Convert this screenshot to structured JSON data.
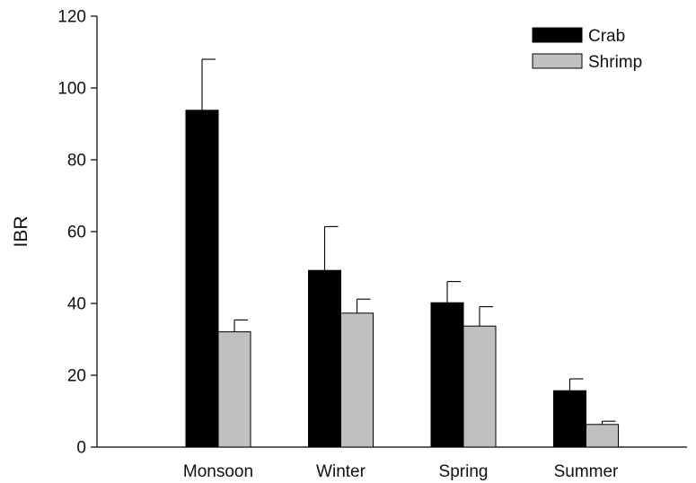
{
  "chart_data": {
    "type": "bar",
    "title": "",
    "xlabel": "",
    "ylabel": "IBR",
    "ylim": [
      0,
      120
    ],
    "yticks": [
      0,
      20,
      40,
      60,
      80,
      100,
      120
    ],
    "categories": [
      "Monsoon",
      "Winter",
      "Spring",
      "Summer"
    ],
    "series": [
      {
        "name": "Crab",
        "values": [
          93.8,
          49.2,
          40.2,
          15.7
        ],
        "errors": [
          14.2,
          12.2,
          5.9,
          3.3
        ],
        "color": "#000000"
      },
      {
        "name": "Shrimp",
        "values": [
          32.1,
          37.3,
          33.7,
          6.3
        ],
        "errors": [
          3.3,
          3.9,
          5.4,
          0.9
        ],
        "color": "#c0c0c0"
      }
    ],
    "legend_position": "top-right",
    "grid": false,
    "error_bars": "upper"
  }
}
